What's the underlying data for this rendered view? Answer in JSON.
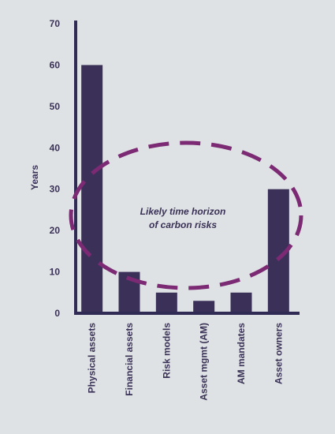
{
  "chart_data": {
    "type": "bar",
    "categories": [
      "Physical assets",
      "Financial assets",
      "Risk models",
      "Asset mgmt (AM)",
      "AM mandates",
      "Asset owners"
    ],
    "values": [
      60,
      10,
      5,
      3,
      5,
      30
    ],
    "ylabel": "Years",
    "xlabel": "",
    "ylim": [
      0,
      70
    ],
    "yticks": [
      0,
      10,
      20,
      30,
      40,
      50,
      60,
      70
    ],
    "grid": false,
    "annotation": {
      "lines": [
        "Likely time horizon",
        "of carbon risks"
      ],
      "shape": "dashed ellipse"
    },
    "colors": {
      "bar": "#3b3158",
      "axis": "#2f2b55",
      "ellipse": "#7b2a73",
      "text": "#3a3256",
      "background": "#dfe2e5"
    }
  }
}
